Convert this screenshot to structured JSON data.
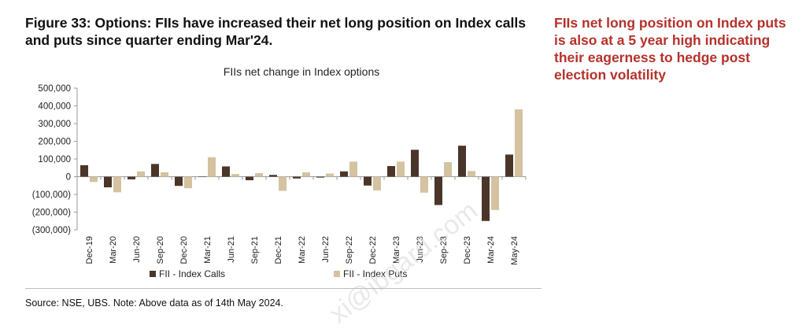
{
  "figure_title": "Figure 33: Options: FIIs have increased their net long position on Index calls and puts since quarter ending Mar'24.",
  "side_note": "FIIs net long position on Index puts is also at a 5 year high indicating their eagerness to hedge post election volatility",
  "source": "Source: NSE, UBS. Note: Above data as of 14th May 2024.",
  "watermark": "xi@ibgard.com",
  "colors": {
    "calls": "#4a3529",
    "puts": "#d4c2a0",
    "title": "#111111",
    "side_note": "#b5322b",
    "axis": "#999999"
  },
  "chart_data": {
    "type": "bar",
    "title": "FIIs net change in Index options",
    "xlabel": "",
    "ylabel": "",
    "ylim": [
      -300000,
      500000
    ],
    "yticks": [
      500000,
      400000,
      300000,
      200000,
      100000,
      0,
      -100000,
      -200000,
      -300000
    ],
    "ytick_labels": [
      "500,000",
      "400,000",
      "300,000",
      "200,000",
      "100,000",
      "0",
      "(100,000)",
      "(200,000)",
      "(300,000)"
    ],
    "categories": [
      "Dec-19",
      "Mar-20",
      "Jun-20",
      "Sep-20",
      "Dec-20",
      "Mar-21",
      "Jun-21",
      "Sep-21",
      "Dec-21",
      "Mar-22",
      "Jun-22",
      "Sep-22",
      "Dec-22",
      "Mar-23",
      "Jun-23",
      "Sep-23",
      "Dec-23",
      "Mar-24",
      "May-24"
    ],
    "series": [
      {
        "name": "FII - Index Calls",
        "values": [
          65000,
          -60000,
          -15000,
          72000,
          -52000,
          0,
          58000,
          -20000,
          10000,
          -10000,
          -5000,
          30000,
          -50000,
          60000,
          152000,
          -160000,
          175000,
          -250000,
          125000
        ]
      },
      {
        "name": "FII - Index Puts",
        "values": [
          -30000,
          -88000,
          30000,
          25000,
          -65000,
          110000,
          15000,
          20000,
          -80000,
          25000,
          18000,
          85000,
          -78000,
          85000,
          -90000,
          82000,
          32000,
          -188000,
          380000
        ]
      }
    ],
    "legend": "bottom",
    "grid": false
  }
}
